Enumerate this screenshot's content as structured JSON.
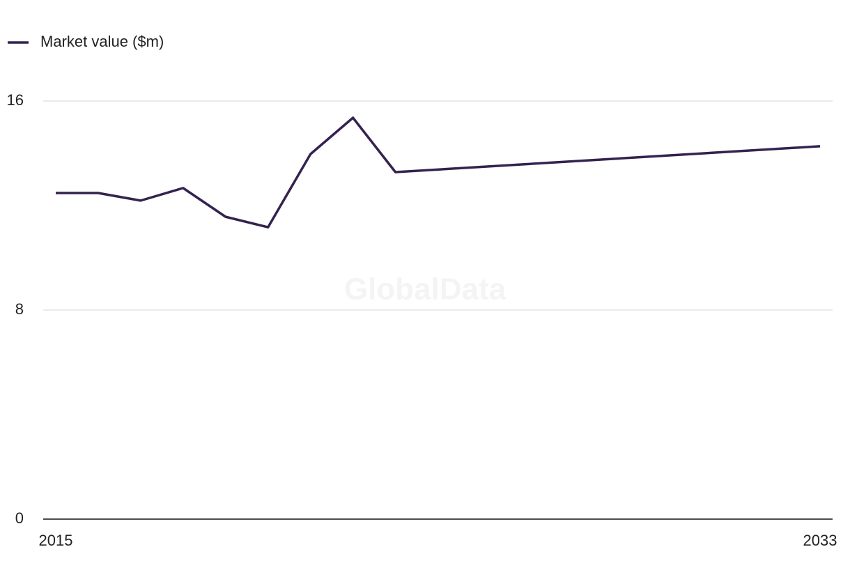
{
  "chart_data": {
    "type": "line",
    "legend": "top-left",
    "annotation": "GlobalData",
    "x": [
      2015,
      2016,
      2017,
      2018,
      2019,
      2020,
      2021,
      2022,
      2023,
      2033
    ],
    "series": [
      {
        "name": "Market value ($m)",
        "color": "#35224f",
        "values": [
          12.48,
          12.48,
          12.19,
          12.67,
          11.57,
          11.17,
          13.97,
          15.36,
          13.28,
          14.27
        ]
      }
    ],
    "xlim": [
      2015,
      2033
    ],
    "xticks": [
      2015,
      2033
    ],
    "ylim": [
      0,
      16
    ],
    "yticks": [
      0,
      8,
      16
    ],
    "grid": true
  }
}
